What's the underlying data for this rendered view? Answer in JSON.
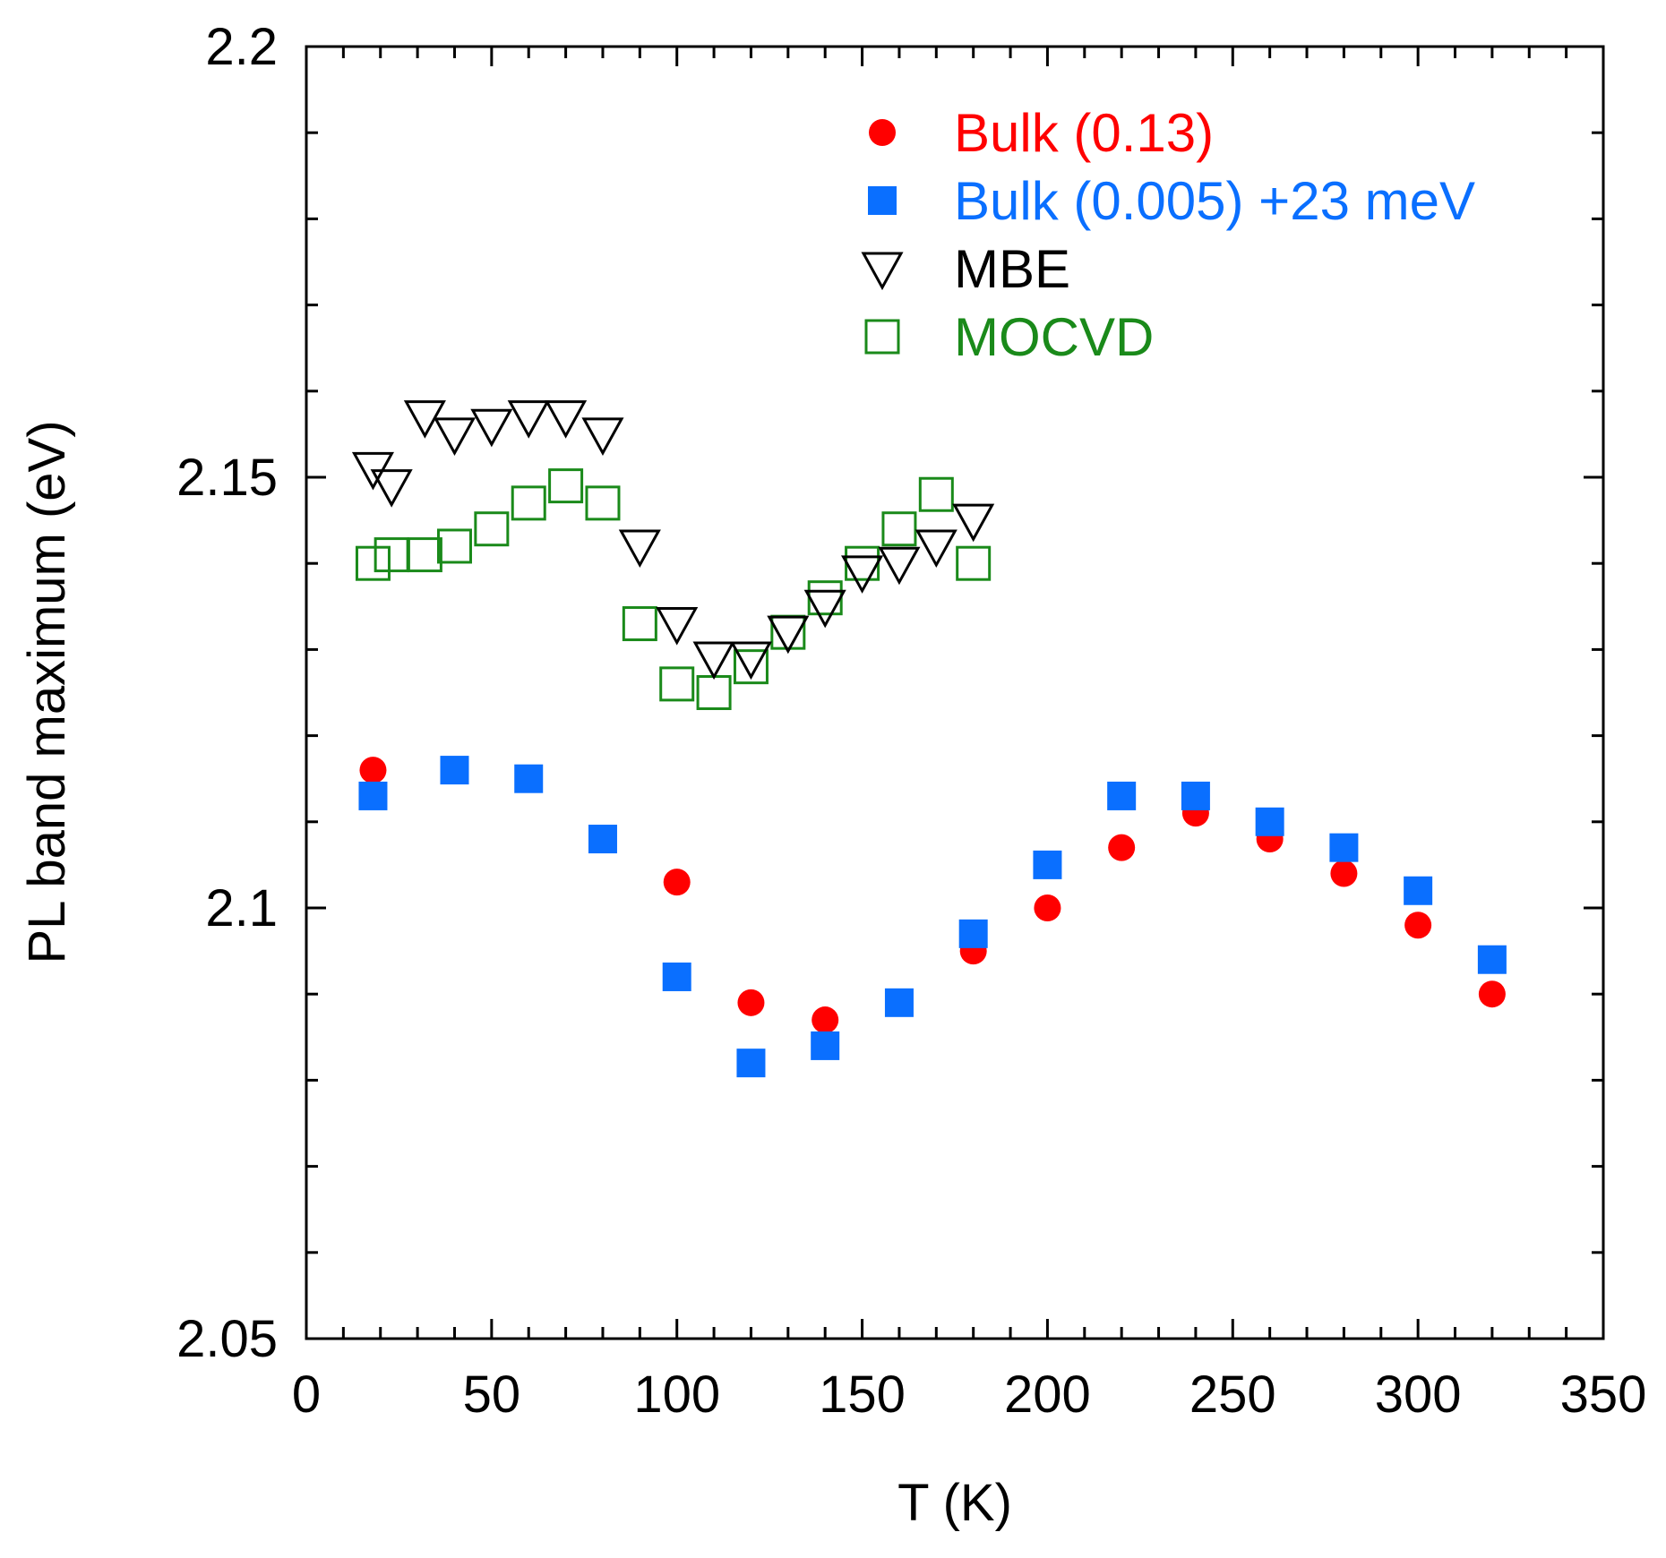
{
  "chart_data": {
    "type": "scatter",
    "title": "",
    "xlabel": "T (K)",
    "ylabel": "PL band maximum (eV)",
    "xlim": [
      0,
      350
    ],
    "ylim": [
      2.05,
      2.2
    ],
    "xticks": [
      0,
      50,
      100,
      150,
      200,
      250,
      300,
      350
    ],
    "xtick_labels": [
      "0",
      "50",
      "100",
      "150",
      "200",
      "250",
      "300",
      "350"
    ],
    "yticks": [
      2.05,
      2.1,
      2.15,
      2.2
    ],
    "ytick_labels": [
      "2.05",
      "2.1",
      "2.15",
      "2.2"
    ],
    "grid": false,
    "legend_position": "top-right",
    "series": [
      {
        "name": "Bulk (0.13)",
        "marker": "filled-circle",
        "color": "#ff0000",
        "x": [
          18,
          100,
          120,
          140,
          180,
          200,
          220,
          240,
          260,
          280,
          300,
          320
        ],
        "y": [
          2.116,
          2.103,
          2.089,
          2.087,
          2.095,
          2.1,
          2.107,
          2.111,
          2.108,
          2.104,
          2.098,
          2.09
        ]
      },
      {
        "name": "Bulk (0.005) +23 meV",
        "marker": "filled-square",
        "color": "#0a6fff",
        "x": [
          18,
          40,
          60,
          80,
          100,
          120,
          140,
          160,
          180,
          200,
          220,
          240,
          260,
          280,
          300,
          320
        ],
        "y": [
          2.113,
          2.116,
          2.115,
          2.108,
          2.092,
          2.082,
          2.084,
          2.089,
          2.097,
          2.105,
          2.113,
          2.113,
          2.11,
          2.107,
          2.102,
          2.094
        ]
      },
      {
        "name": "MBE",
        "marker": "open-triangle-down",
        "color": "#000000",
        "x": [
          18,
          23,
          32,
          40,
          50,
          60,
          70,
          80,
          90,
          100,
          110,
          120,
          130,
          140,
          150,
          160,
          170,
          180
        ],
        "y": [
          2.151,
          2.149,
          2.157,
          2.155,
          2.156,
          2.157,
          2.157,
          2.155,
          2.142,
          2.133,
          2.129,
          2.129,
          2.132,
          2.135,
          2.139,
          2.14,
          2.142,
          2.145
        ]
      },
      {
        "name": "MOCVD",
        "marker": "open-square",
        "color": "#1a8a1a",
        "x": [
          18,
          23,
          32,
          40,
          50,
          60,
          70,
          80,
          90,
          100,
          110,
          120,
          130,
          140,
          150,
          160,
          170,
          180
        ],
        "y": [
          2.14,
          2.141,
          2.141,
          2.142,
          2.144,
          2.147,
          2.149,
          2.147,
          2.133,
          2.126,
          2.125,
          2.128,
          2.132,
          2.136,
          2.14,
          2.144,
          2.148,
          2.14
        ]
      }
    ]
  }
}
